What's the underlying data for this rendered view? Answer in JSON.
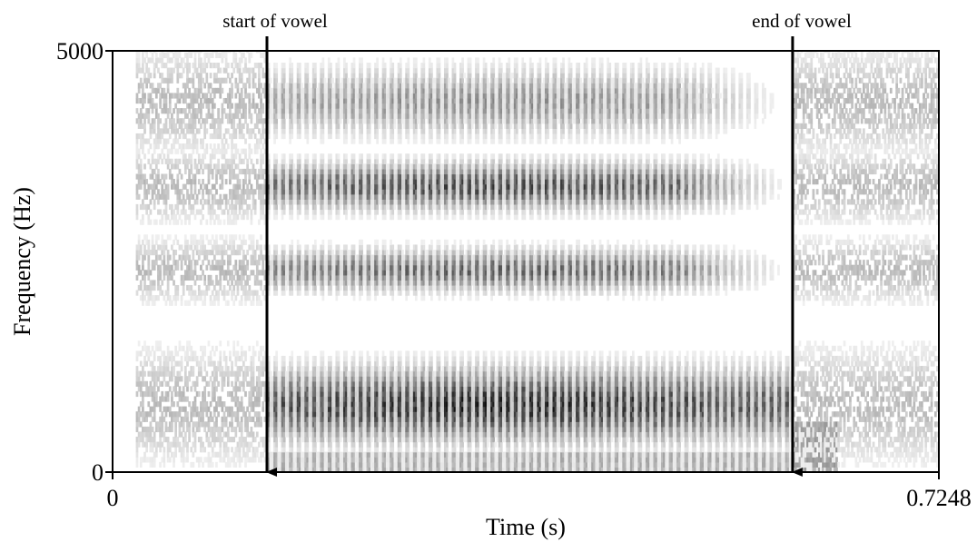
{
  "chart_data": {
    "type": "heatmap",
    "subtype": "spectrogram",
    "xlabel": "Time (s)",
    "ylabel": "Frequency (Hz)",
    "xlim": [
      0,
      0.7248
    ],
    "ylim": [
      0,
      5000
    ],
    "x_tick_labels": [
      "0",
      "0.7248"
    ],
    "y_tick_labels": [
      "0",
      "5000"
    ],
    "colormap": "grayscale (darker = higher energy)",
    "grid": false,
    "legend": "none",
    "annotations": [
      {
        "text": "start of vowel",
        "x": 0.1354,
        "arrow": "down"
      },
      {
        "text": "end of vowel",
        "x": 0.5965,
        "arrow": "down"
      }
    ],
    "formant_bands_hz": [
      {
        "center": 800,
        "half_width": 500,
        "intensity": 0.92
      },
      {
        "center": 2400,
        "half_width": 280,
        "intensity": 0.68
      },
      {
        "center": 3400,
        "half_width": 320,
        "intensity": 0.78
      },
      {
        "center": 4400,
        "half_width": 450,
        "intensity": 0.48
      }
    ],
    "segments_s": {
      "voiced_start": 0.1354,
      "voiced_end": 0.5965,
      "pre_noise_start": 0.02,
      "post_noise_end": 0.7248
    },
    "glottal_pulse_period_s": 0.0068
  }
}
